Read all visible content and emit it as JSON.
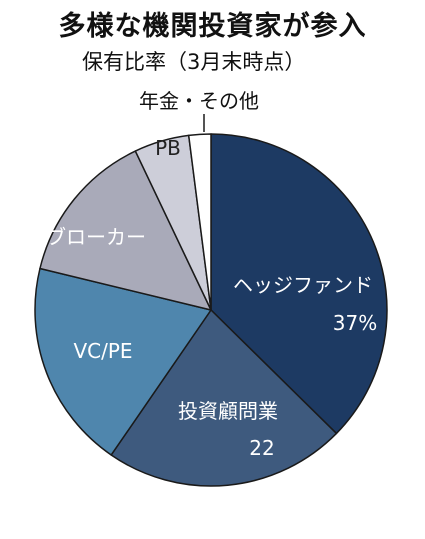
{
  "chart_data": {
    "type": "pie",
    "title": "多様な機関投資家が参入",
    "subtitle": "保有比率（3月末時点）",
    "slices": [
      {
        "label": "ヘッジファンド",
        "value_label": "37%",
        "value": 37,
        "color": "#1d3a63",
        "text_color": "#ffffff"
      },
      {
        "label": "投資顧問業",
        "value_label": "22",
        "value": 22,
        "color": "#3e5a7e",
        "text_color": "#ffffff"
      },
      {
        "label": "VC/PE",
        "value_label": "",
        "value": 19,
        "color": "#4f86ad",
        "text_color": "#ffffff"
      },
      {
        "label": "ブローカー",
        "value_label": "",
        "value": 14,
        "color": "#a9aab9",
        "text_color": "#ffffff"
      },
      {
        "label": "PB",
        "value_label": "",
        "value": 5,
        "color": "#cdced9",
        "text_color": "#222222"
      },
      {
        "label": "年金・その他",
        "value_label": "",
        "value": 2,
        "color": "#ffffff",
        "text_color": "#111111"
      }
    ]
  }
}
